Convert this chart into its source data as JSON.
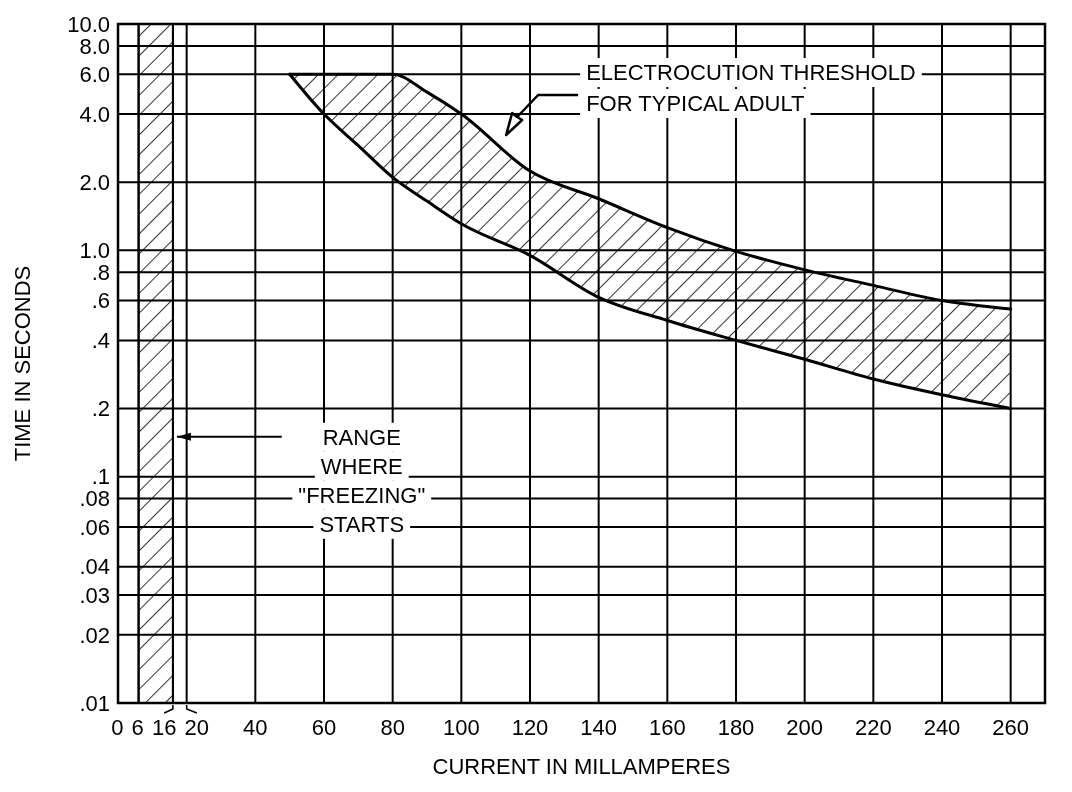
{
  "chart_data": {
    "type": "line",
    "xlabel": "CURRENT IN MILLAMPERES",
    "ylabel": "TIME IN SECONDS",
    "log": "y",
    "grid": true,
    "xlim": [
      0,
      270
    ],
    "xticks": [
      0,
      6,
      16,
      20,
      40,
      60,
      80,
      100,
      120,
      140,
      160,
      180,
      200,
      220,
      240,
      260
    ],
    "ylim": [
      0.01,
      10
    ],
    "yticks": [
      {
        "value": 0.01,
        "label": ".01"
      },
      {
        "value": 0.02,
        "label": ".02"
      },
      {
        "value": 0.03,
        "label": ".03"
      },
      {
        "value": 0.04,
        "label": ".04"
      },
      {
        "value": 0.06,
        "label": ".06"
      },
      {
        "value": 0.08,
        "label": ".08"
      },
      {
        "value": 0.1,
        "label": ".1"
      },
      {
        "value": 0.2,
        "label": ".2"
      },
      {
        "value": 0.4,
        "label": ".4"
      },
      {
        "value": 0.6,
        "label": ".6"
      },
      {
        "value": 0.8,
        "label": ".8"
      },
      {
        "value": 1,
        "label": "1.0"
      },
      {
        "value": 2,
        "label": "2.0"
      },
      {
        "value": 4,
        "label": "4.0"
      },
      {
        "value": 6,
        "label": "6.0"
      },
      {
        "value": 8,
        "label": "8.0"
      },
      {
        "value": 10,
        "label": "10.0"
      }
    ],
    "series": [
      {
        "color": "#000000",
        "x": [
          50,
          60,
          70,
          80,
          90,
          100,
          120,
          140,
          160,
          180,
          200,
          220,
          240,
          260
        ],
        "values": [
          6,
          6,
          6,
          6,
          5,
          4,
          2.24,
          1.69,
          1.26,
          0.99,
          0.82,
          0.7,
          0.6,
          0.55
        ]
      },
      {
        "color": "#000000",
        "x": [
          50,
          60,
          70,
          80,
          90,
          100,
          120,
          140,
          160,
          180,
          200,
          220,
          240,
          260
        ],
        "values": [
          6,
          4,
          2.9,
          2.1,
          1.65,
          1.31,
          0.95,
          0.62,
          0.49,
          0.4,
          0.33,
          0.27,
          0.23,
          0.2
        ]
      }
    ],
    "bands": [
      {
        "axis": "x",
        "from": 6,
        "to": 16,
        "label": "RANGE\nWHERE\n\"FREEZING\"\nSTARTS",
        "color": "#000000"
      }
    ],
    "annotations": [
      "ELECTROCUTION THRESHOLD\nFOR TYPICAL ADULT"
    ]
  }
}
